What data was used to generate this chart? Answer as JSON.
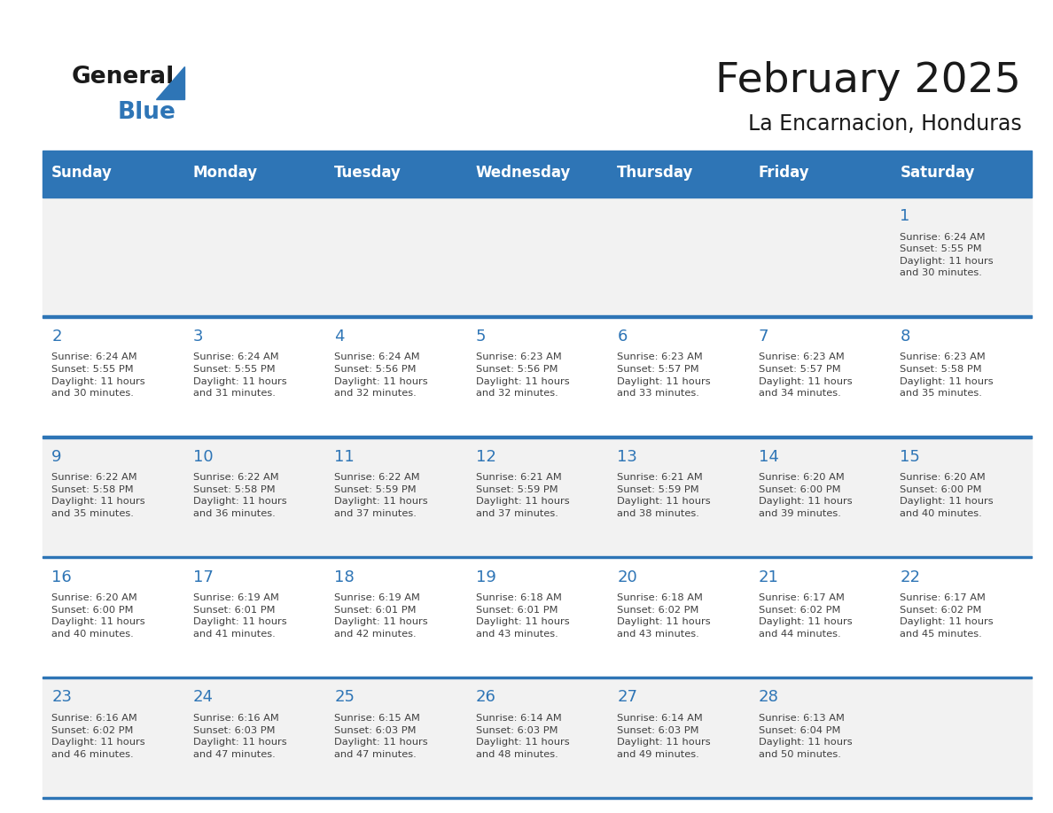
{
  "title": "February 2025",
  "subtitle": "La Encarnacion, Honduras",
  "days_of_week": [
    "Sunday",
    "Monday",
    "Tuesday",
    "Wednesday",
    "Thursday",
    "Friday",
    "Saturday"
  ],
  "header_bg": "#2E75B6",
  "header_text": "#FFFFFF",
  "odd_row_bg": "#FFFFFF",
  "even_row_bg": "#F2F2F2",
  "line_color": "#2E75B6",
  "day_number_color": "#2E75B6",
  "text_color": "#404040",
  "title_color": "#1a1a1a",
  "calendar_data": [
    [
      {
        "day": null,
        "info": null
      },
      {
        "day": null,
        "info": null
      },
      {
        "day": null,
        "info": null
      },
      {
        "day": null,
        "info": null
      },
      {
        "day": null,
        "info": null
      },
      {
        "day": null,
        "info": null
      },
      {
        "day": 1,
        "info": "Sunrise: 6:24 AM\nSunset: 5:55 PM\nDaylight: 11 hours\nand 30 minutes."
      }
    ],
    [
      {
        "day": 2,
        "info": "Sunrise: 6:24 AM\nSunset: 5:55 PM\nDaylight: 11 hours\nand 30 minutes."
      },
      {
        "day": 3,
        "info": "Sunrise: 6:24 AM\nSunset: 5:55 PM\nDaylight: 11 hours\nand 31 minutes."
      },
      {
        "day": 4,
        "info": "Sunrise: 6:24 AM\nSunset: 5:56 PM\nDaylight: 11 hours\nand 32 minutes."
      },
      {
        "day": 5,
        "info": "Sunrise: 6:23 AM\nSunset: 5:56 PM\nDaylight: 11 hours\nand 32 minutes."
      },
      {
        "day": 6,
        "info": "Sunrise: 6:23 AM\nSunset: 5:57 PM\nDaylight: 11 hours\nand 33 minutes."
      },
      {
        "day": 7,
        "info": "Sunrise: 6:23 AM\nSunset: 5:57 PM\nDaylight: 11 hours\nand 34 minutes."
      },
      {
        "day": 8,
        "info": "Sunrise: 6:23 AM\nSunset: 5:58 PM\nDaylight: 11 hours\nand 35 minutes."
      }
    ],
    [
      {
        "day": 9,
        "info": "Sunrise: 6:22 AM\nSunset: 5:58 PM\nDaylight: 11 hours\nand 35 minutes."
      },
      {
        "day": 10,
        "info": "Sunrise: 6:22 AM\nSunset: 5:58 PM\nDaylight: 11 hours\nand 36 minutes."
      },
      {
        "day": 11,
        "info": "Sunrise: 6:22 AM\nSunset: 5:59 PM\nDaylight: 11 hours\nand 37 minutes."
      },
      {
        "day": 12,
        "info": "Sunrise: 6:21 AM\nSunset: 5:59 PM\nDaylight: 11 hours\nand 37 minutes."
      },
      {
        "day": 13,
        "info": "Sunrise: 6:21 AM\nSunset: 5:59 PM\nDaylight: 11 hours\nand 38 minutes."
      },
      {
        "day": 14,
        "info": "Sunrise: 6:20 AM\nSunset: 6:00 PM\nDaylight: 11 hours\nand 39 minutes."
      },
      {
        "day": 15,
        "info": "Sunrise: 6:20 AM\nSunset: 6:00 PM\nDaylight: 11 hours\nand 40 minutes."
      }
    ],
    [
      {
        "day": 16,
        "info": "Sunrise: 6:20 AM\nSunset: 6:00 PM\nDaylight: 11 hours\nand 40 minutes."
      },
      {
        "day": 17,
        "info": "Sunrise: 6:19 AM\nSunset: 6:01 PM\nDaylight: 11 hours\nand 41 minutes."
      },
      {
        "day": 18,
        "info": "Sunrise: 6:19 AM\nSunset: 6:01 PM\nDaylight: 11 hours\nand 42 minutes."
      },
      {
        "day": 19,
        "info": "Sunrise: 6:18 AM\nSunset: 6:01 PM\nDaylight: 11 hours\nand 43 minutes."
      },
      {
        "day": 20,
        "info": "Sunrise: 6:18 AM\nSunset: 6:02 PM\nDaylight: 11 hours\nand 43 minutes."
      },
      {
        "day": 21,
        "info": "Sunrise: 6:17 AM\nSunset: 6:02 PM\nDaylight: 11 hours\nand 44 minutes."
      },
      {
        "day": 22,
        "info": "Sunrise: 6:17 AM\nSunset: 6:02 PM\nDaylight: 11 hours\nand 45 minutes."
      }
    ],
    [
      {
        "day": 23,
        "info": "Sunrise: 6:16 AM\nSunset: 6:02 PM\nDaylight: 11 hours\nand 46 minutes."
      },
      {
        "day": 24,
        "info": "Sunrise: 6:16 AM\nSunset: 6:03 PM\nDaylight: 11 hours\nand 47 minutes."
      },
      {
        "day": 25,
        "info": "Sunrise: 6:15 AM\nSunset: 6:03 PM\nDaylight: 11 hours\nand 47 minutes."
      },
      {
        "day": 26,
        "info": "Sunrise: 6:14 AM\nSunset: 6:03 PM\nDaylight: 11 hours\nand 48 minutes."
      },
      {
        "day": 27,
        "info": "Sunrise: 6:14 AM\nSunset: 6:03 PM\nDaylight: 11 hours\nand 49 minutes."
      },
      {
        "day": 28,
        "info": "Sunrise: 6:13 AM\nSunset: 6:04 PM\nDaylight: 11 hours\nand 50 minutes."
      },
      {
        "day": null,
        "info": null
      }
    ]
  ],
  "logo_text_general": "General",
  "logo_text_blue": "Blue",
  "logo_color_general": "#1a1a1a",
  "logo_color_blue": "#2E75B6"
}
